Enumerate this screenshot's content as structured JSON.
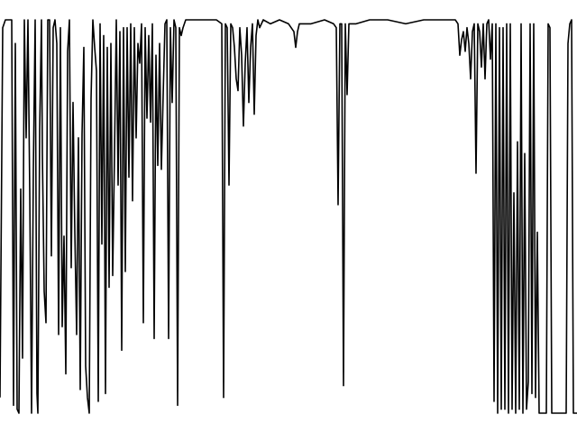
{
  "chart_data": {
    "type": "line",
    "title": "",
    "xlabel": "",
    "ylabel": "",
    "grid": false,
    "axes_visible": false,
    "xlim": [
      0,
      640
    ],
    "ylim": [
      0,
      1
    ],
    "series": [
      {
        "color": "#000000",
        "points": [
          [
            0,
            0.04
          ],
          [
            3,
            0.98
          ],
          [
            6,
            1.0
          ],
          [
            13,
            1.0
          ],
          [
            15,
            0.02
          ],
          [
            17,
            0.94
          ],
          [
            19,
            0.01
          ],
          [
            21,
            0.0
          ],
          [
            23,
            0.57
          ],
          [
            25,
            0.14
          ],
          [
            27,
            1.0
          ],
          [
            29,
            0.7
          ],
          [
            31,
            1.0
          ],
          [
            33,
            0.56
          ],
          [
            35,
            0.0
          ],
          [
            37,
            0.62
          ],
          [
            39,
            1.0
          ],
          [
            41,
            0.05
          ],
          [
            42,
            0.0
          ],
          [
            44,
            0.72
          ],
          [
            46,
            1.0
          ],
          [
            47,
            0.66
          ],
          [
            49,
            0.31
          ],
          [
            51,
            0.23
          ],
          [
            53,
            1.0
          ],
          [
            55,
            1.0
          ],
          [
            57,
            0.4
          ],
          [
            59,
            0.98
          ],
          [
            61,
            1.0
          ],
          [
            63,
            0.94
          ],
          [
            65,
            0.2
          ],
          [
            67,
            0.98
          ],
          [
            69,
            0.22
          ],
          [
            71,
            0.45
          ],
          [
            73,
            0.1
          ],
          [
            75,
            0.92
          ],
          [
            77,
            1.0
          ],
          [
            79,
            0.37
          ],
          [
            81,
            0.79
          ],
          [
            83,
            0.46
          ],
          [
            85,
            0.2
          ],
          [
            87,
            0.7
          ],
          [
            89,
            0.06
          ],
          [
            91,
            0.71
          ],
          [
            93,
            0.93
          ],
          [
            95,
            0.12
          ],
          [
            97,
            0.04
          ],
          [
            99,
            0.0
          ],
          [
            101,
            0.8
          ],
          [
            103,
            1.0
          ],
          [
            105,
            0.93
          ],
          [
            107,
            0.87
          ],
          [
            109,
            0.03
          ],
          [
            111,
            0.99
          ],
          [
            113,
            0.43
          ],
          [
            115,
            0.96
          ],
          [
            117,
            0.05
          ],
          [
            119,
            0.93
          ],
          [
            121,
            0.32
          ],
          [
            123,
            0.94
          ],
          [
            125,
            0.35
          ],
          [
            127,
            0.66
          ],
          [
            129,
            1.0
          ],
          [
            131,
            0.58
          ],
          [
            133,
            0.97
          ],
          [
            135,
            0.16
          ],
          [
            137,
            0.98
          ],
          [
            139,
            0.36
          ],
          [
            141,
            0.98
          ],
          [
            143,
            0.6
          ],
          [
            145,
            0.99
          ],
          [
            147,
            0.54
          ],
          [
            149,
            0.98
          ],
          [
            151,
            0.7
          ],
          [
            153,
            0.94
          ],
          [
            155,
            0.89
          ],
          [
            157,
            0.99
          ],
          [
            159,
            0.23
          ],
          [
            161,
            0.98
          ],
          [
            163,
            0.75
          ],
          [
            165,
            0.96
          ],
          [
            167,
            0.74
          ],
          [
            169,
            0.99
          ],
          [
            171,
            0.19
          ],
          [
            173,
            0.91
          ],
          [
            175,
            0.63
          ],
          [
            177,
            0.94
          ],
          [
            179,
            0.62
          ],
          [
            181,
            0.81
          ],
          [
            183,
            0.99
          ],
          [
            185,
            1.0
          ],
          [
            187,
            0.19
          ],
          [
            189,
            0.98
          ],
          [
            191,
            0.79
          ],
          [
            193,
            1.0
          ],
          [
            195,
            0.98
          ],
          [
            197,
            0.02
          ],
          [
            199,
            0.98
          ],
          [
            201,
            0.96
          ],
          [
            203,
            0.98
          ],
          [
            206,
            1.0
          ],
          [
            215,
            1.0
          ],
          [
            230,
            1.0
          ],
          [
            240,
            1.0
          ],
          [
            246,
            0.99
          ],
          [
            248,
            0.04
          ],
          [
            250,
            0.99
          ],
          [
            252,
            0.98
          ],
          [
            254,
            0.58
          ],
          [
            256,
            0.99
          ],
          [
            258,
            0.98
          ],
          [
            260,
            0.93
          ],
          [
            262,
            0.85
          ],
          [
            264,
            0.82
          ],
          [
            266,
            0.98
          ],
          [
            268,
            0.91
          ],
          [
            270,
            0.73
          ],
          [
            272,
            0.89
          ],
          [
            274,
            0.98
          ],
          [
            276,
            0.79
          ],
          [
            278,
            0.93
          ],
          [
            280,
            0.99
          ],
          [
            282,
            0.76
          ],
          [
            284,
            0.96
          ],
          [
            286,
            1.0
          ],
          [
            288,
            0.98
          ],
          [
            292,
            1.0
          ],
          [
            300,
            0.99
          ],
          [
            310,
            1.0
          ],
          [
            320,
            0.99
          ],
          [
            326,
            0.97
          ],
          [
            328,
            0.93
          ],
          [
            330,
            0.97
          ],
          [
            332,
            0.99
          ],
          [
            345,
            0.99
          ],
          [
            360,
            1.0
          ],
          [
            370,
            0.99
          ],
          [
            373,
            0.98
          ],
          [
            375,
            0.53
          ],
          [
            377,
            0.99
          ],
          [
            379,
            0.99
          ],
          [
            381,
            0.07
          ],
          [
            383,
            0.99
          ],
          [
            385,
            0.81
          ],
          [
            387,
            0.99
          ],
          [
            395,
            0.99
          ],
          [
            410,
            1.0
          ],
          [
            430,
            1.0
          ],
          [
            450,
            0.99
          ],
          [
            470,
            1.0
          ],
          [
            490,
            1.0
          ],
          [
            505,
            1.0
          ],
          [
            508,
            0.99
          ],
          [
            510,
            0.91
          ],
          [
            512,
            0.95
          ],
          [
            514,
            0.97
          ],
          [
            516,
            0.92
          ],
          [
            518,
            0.98
          ],
          [
            520,
            0.94
          ],
          [
            522,
            0.85
          ],
          [
            524,
            0.97
          ],
          [
            526,
            0.99
          ],
          [
            528,
            0.61
          ],
          [
            530,
            0.99
          ],
          [
            532,
            0.97
          ],
          [
            534,
            0.88
          ],
          [
            536,
            0.99
          ],
          [
            538,
            0.85
          ],
          [
            540,
            0.99
          ],
          [
            542,
            1.0
          ],
          [
            544,
            0.9
          ],
          [
            546,
            0.99
          ],
          [
            548,
            0.03
          ],
          [
            550,
            0.99
          ],
          [
            552,
            0.0
          ],
          [
            554,
            0.98
          ],
          [
            556,
            0.01
          ],
          [
            558,
            0.98
          ],
          [
            560,
            0.01
          ],
          [
            562,
            0.99
          ],
          [
            564,
            0.0
          ],
          [
            566,
            0.99
          ],
          [
            568,
            0.01
          ],
          [
            570,
            0.56
          ],
          [
            572,
            0.0
          ],
          [
            574,
            0.69
          ],
          [
            576,
            0.01
          ],
          [
            578,
            0.99
          ],
          [
            580,
            0.0
          ],
          [
            582,
            0.66
          ],
          [
            584,
            0.01
          ],
          [
            586,
            0.08
          ],
          [
            588,
            0.99
          ],
          [
            590,
            0.05
          ],
          [
            592,
            0.99
          ],
          [
            594,
            0.04
          ],
          [
            596,
            0.46
          ],
          [
            598,
            0.0
          ],
          [
            606,
            0.0
          ],
          [
            608,
            0.99
          ],
          [
            610,
            0.98
          ],
          [
            612,
            0.0
          ],
          [
            620,
            0.0
          ],
          [
            626,
            0.0
          ],
          [
            628,
            0.0
          ],
          [
            630,
            0.94
          ],
          [
            632,
            0.99
          ],
          [
            634,
            1.0
          ],
          [
            636,
            0.0
          ],
          [
            640,
            0.0
          ]
        ]
      }
    ]
  }
}
